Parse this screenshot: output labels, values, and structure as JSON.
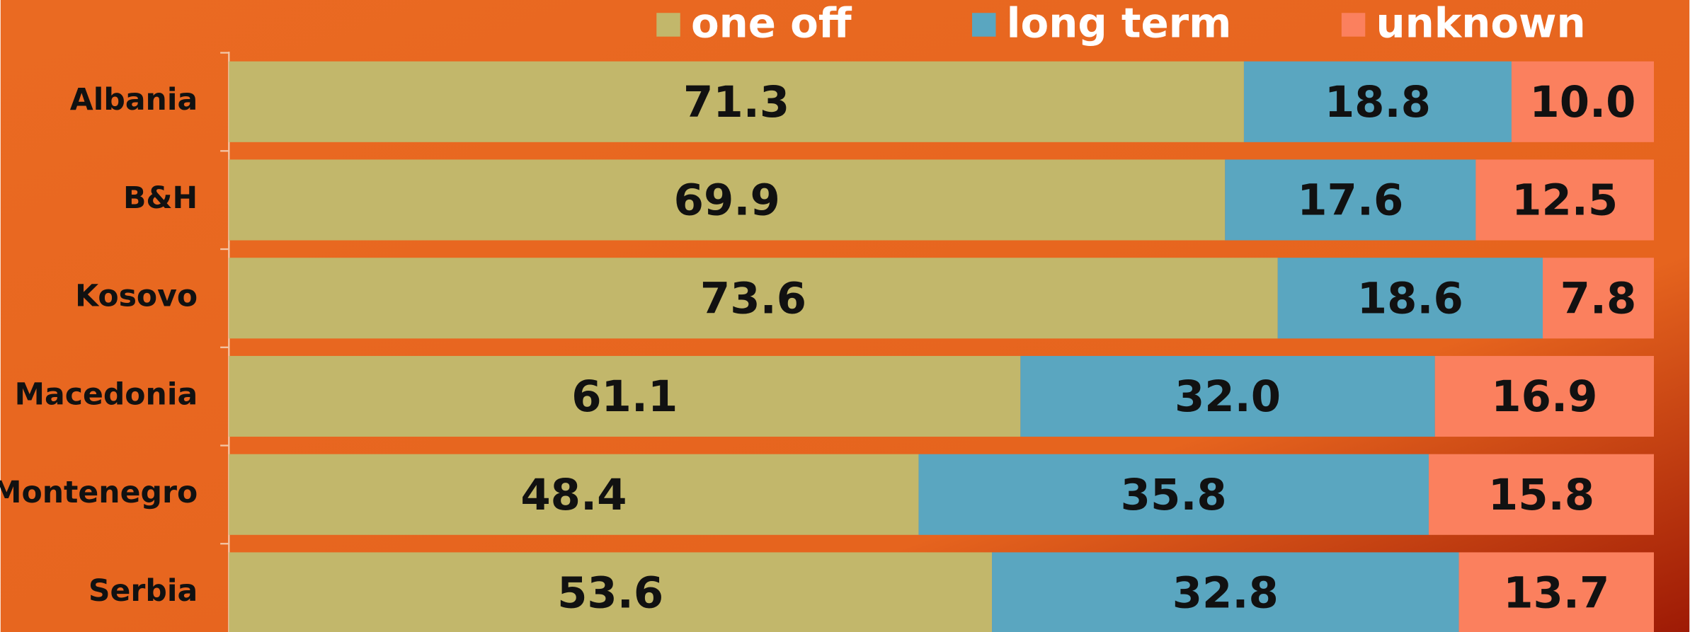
{
  "chart_data": {
    "type": "bar",
    "orientation": "horizontal",
    "stacking": "percent",
    "categories": [
      "Albania",
      "B&H",
      "Kosovo",
      "Macedonia",
      "Montenegro",
      "Serbia"
    ],
    "series": [
      {
        "name": "one off",
        "color": "#c2b76b",
        "values": [
          71.3,
          69.9,
          73.6,
          61.1,
          48.4,
          53.6
        ],
        "value_labels": [
          "71.3",
          "69.9",
          "73.6",
          "61.1",
          "48.4",
          "53.6"
        ]
      },
      {
        "name": "long term",
        "color": "#5aa6c0",
        "values": [
          18.8,
          17.6,
          18.6,
          32.0,
          35.8,
          32.8
        ],
        "value_labels": [
          "18.8",
          "17.6",
          "18.6",
          "32.0",
          "35.8",
          "32.8"
        ]
      },
      {
        "name": "unknown",
        "color": "#fb805e",
        "values": [
          10.0,
          12.5,
          7.8,
          16.9,
          15.8,
          13.7
        ],
        "value_labels": [
          "10.0",
          "12.5",
          "7.8",
          "16.9",
          "15.8",
          "13.7"
        ]
      }
    ],
    "legend": "top"
  }
}
